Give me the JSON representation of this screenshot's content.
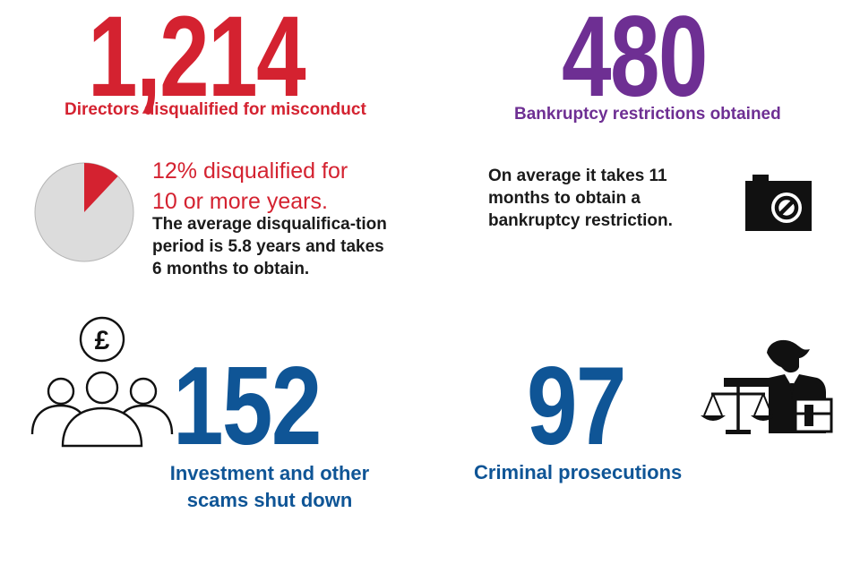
{
  "colors": {
    "red": "#d42230",
    "purple": "#6e2f93",
    "blue": "#0f5596",
    "pie_grey": "#dcdcdc",
    "dark": "#111111"
  },
  "directors": {
    "number": "1,214",
    "caption": "Directors disqualified for misconduct"
  },
  "bankruptcy": {
    "number": "480",
    "caption": "Bankruptcy restrictions obtained",
    "detail": "On average it takes 11 months to obtain a bankruptcy restriction.",
    "icon": "camera-blocked-icon"
  },
  "disqualification": {
    "share_10_plus_years_pct": 12,
    "headline_line1": "12% disqualified for",
    "headline_line2": "10 or more years.",
    "detail": "The average disqualifica-tion period is 5.8 years and takes 6 months to obtain.",
    "icon": "pie-chart-icon"
  },
  "scams": {
    "number": "152",
    "caption": "Investment and other scams shut down",
    "icon": "people-pound-icon",
    "pound_symbol": "£"
  },
  "prosecutions": {
    "number": "97",
    "caption": "Criminal prosecutions",
    "icon": "judge-scales-icon"
  }
}
